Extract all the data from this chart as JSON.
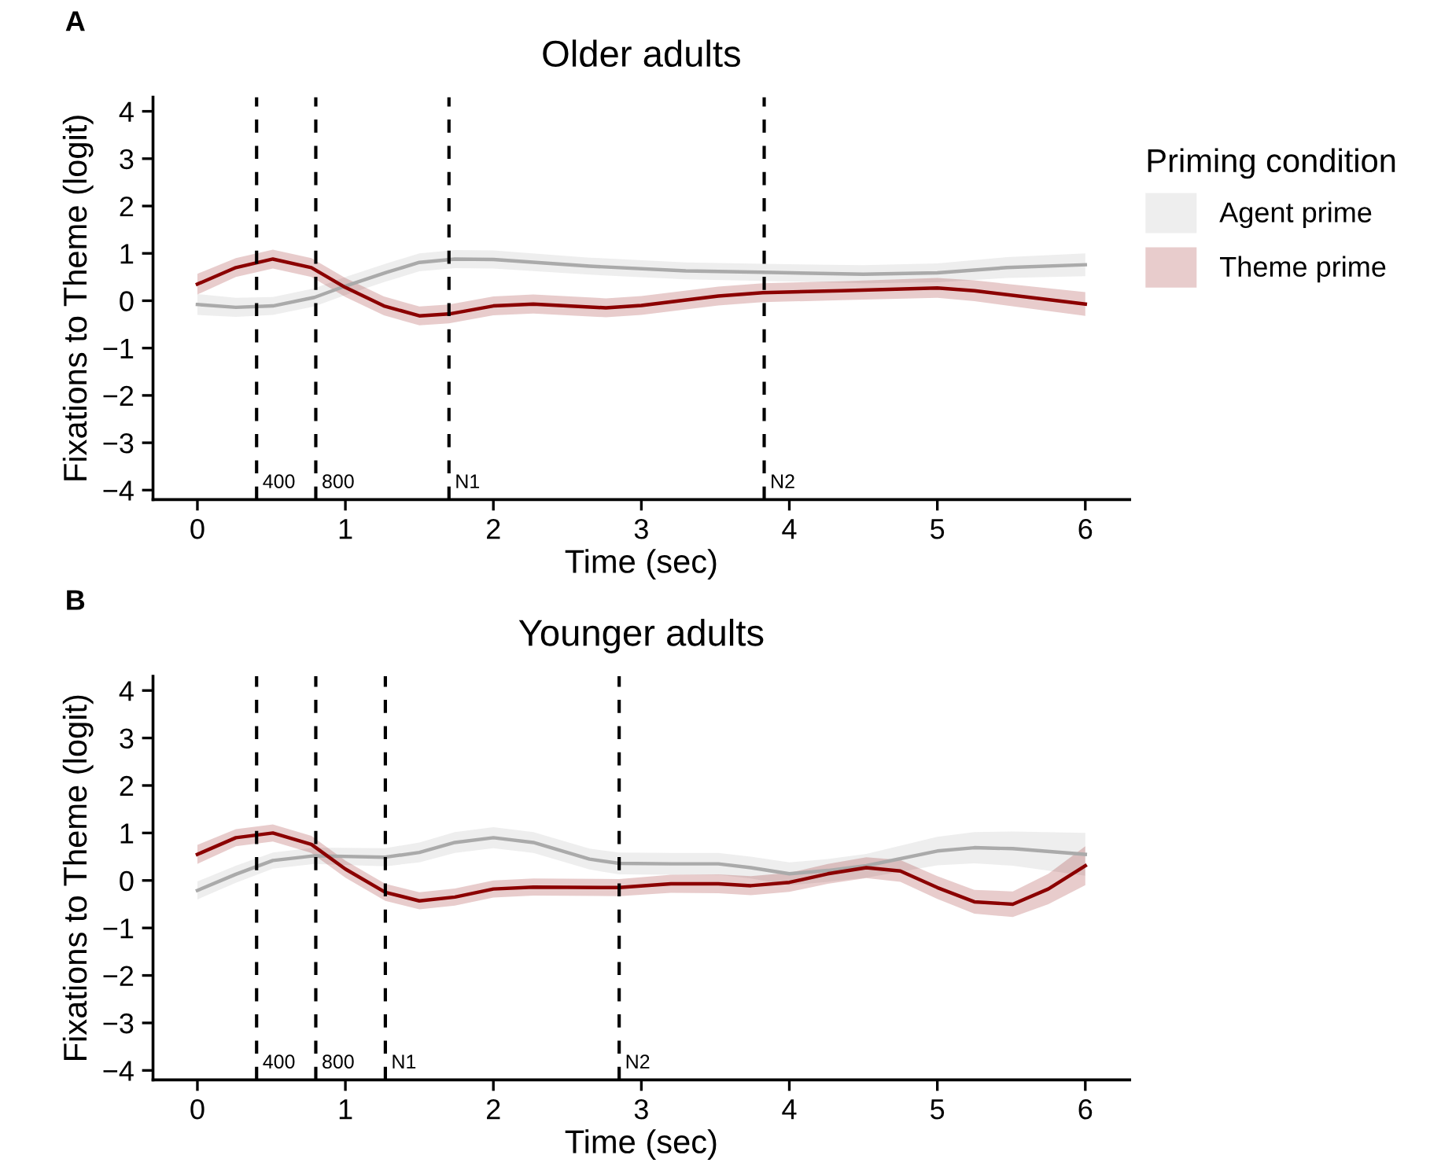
{
  "chart_data": [
    {
      "type": "line",
      "title": "Older adults",
      "xlabel": "Time (sec)",
      "ylabel": "Fixations to Theme (logit)",
      "legend_title": "Priming condition",
      "legend": "right",
      "annotations": [
        "A"
      ],
      "grid": false,
      "line_style": "solid",
      "marker": "none",
      "xlim": [
        -0.3,
        6.3
      ],
      "xticks": [
        0,
        1,
        2,
        3,
        4,
        5,
        6
      ],
      "ylim": [
        -4.2,
        4.3
      ],
      "yticks": [
        -4,
        -3,
        -2,
        -1,
        0,
        1,
        2,
        3,
        4
      ],
      "ref_lines": [
        {
          "axis": "x",
          "value": 0.4,
          "label": "400",
          "color": "#000000",
          "line_style": "dashed"
        },
        {
          "axis": "x",
          "value": 0.8,
          "label": "800",
          "color": "#000000",
          "line_style": "dashed"
        },
        {
          "axis": "x",
          "value": 1.7,
          "label": "N1",
          "color": "#000000",
          "line_style": "dashed"
        },
        {
          "axis": "x",
          "value": 3.83,
          "label": "N2",
          "color": "#000000",
          "line_style": "dashed"
        }
      ],
      "series": [
        {
          "name": "Agent prime",
          "color": "#aaaaaa",
          "x": [
            0,
            0.26,
            0.51,
            0.79,
            1.0,
            1.27,
            1.5,
            1.74,
            2.0,
            2.65,
            3.3,
            3.82,
            4.5,
            5.0,
            5.47,
            6.0
          ],
          "values": [
            -0.08,
            -0.14,
            -0.11,
            0.07,
            0.31,
            0.59,
            0.81,
            0.88,
            0.87,
            0.73,
            0.63,
            0.6,
            0.56,
            0.59,
            0.7,
            0.76
          ],
          "lower": [
            -0.3,
            -0.34,
            -0.3,
            -0.12,
            0.12,
            0.4,
            0.62,
            0.69,
            0.68,
            0.55,
            0.45,
            0.42,
            0.37,
            0.39,
            0.48,
            0.52
          ],
          "upper": [
            0.14,
            0.06,
            0.08,
            0.26,
            0.5,
            0.78,
            1.0,
            1.07,
            1.06,
            0.91,
            0.81,
            0.78,
            0.75,
            0.79,
            0.92,
            1.0
          ]
        },
        {
          "name": "Theme prime",
          "color": "#8b0000",
          "x": [
            0,
            0.26,
            0.51,
            0.77,
            1.0,
            1.26,
            1.5,
            1.7,
            2.0,
            2.27,
            2.76,
            3.0,
            3.52,
            3.82,
            4.35,
            5.0,
            5.25,
            6.0
          ],
          "values": [
            0.35,
            0.7,
            0.88,
            0.7,
            0.28,
            -0.11,
            -0.32,
            -0.28,
            -0.11,
            -0.07,
            -0.15,
            -0.1,
            0.1,
            0.17,
            0.21,
            0.27,
            0.21,
            -0.07
          ],
          "lower": [
            0.13,
            0.5,
            0.68,
            0.5,
            0.08,
            -0.31,
            -0.52,
            -0.48,
            -0.31,
            -0.27,
            -0.35,
            -0.3,
            -0.1,
            -0.03,
            0.01,
            0.06,
            -0.01,
            -0.32
          ],
          "upper": [
            0.57,
            0.9,
            1.08,
            0.9,
            0.48,
            0.09,
            -0.12,
            -0.08,
            0.09,
            0.13,
            0.05,
            0.1,
            0.3,
            0.37,
            0.41,
            0.48,
            0.43,
            0.18
          ]
        }
      ]
    },
    {
      "type": "line",
      "title": "Younger adults",
      "xlabel": "Time (sec)",
      "ylabel": "Fixations to Theme (logit)",
      "annotations": [
        "B"
      ],
      "grid": false,
      "line_style": "solid",
      "marker": "none",
      "xlim": [
        -0.3,
        6.3
      ],
      "xticks": [
        0,
        1,
        2,
        3,
        4,
        5,
        6
      ],
      "ylim": [
        -4.2,
        4.3
      ],
      "yticks": [
        -4,
        -3,
        -2,
        -1,
        0,
        1,
        2,
        3,
        4
      ],
      "ref_lines": [
        {
          "axis": "x",
          "value": 0.4,
          "label": "400",
          "color": "#000000",
          "line_style": "dashed"
        },
        {
          "axis": "x",
          "value": 0.8,
          "label": "800",
          "color": "#000000",
          "line_style": "dashed"
        },
        {
          "axis": "x",
          "value": 1.27,
          "label": "N1",
          "color": "#000000",
          "line_style": "dashed"
        },
        {
          "axis": "x",
          "value": 2.85,
          "label": "N2",
          "color": "#000000",
          "line_style": "dashed"
        }
      ],
      "series": [
        {
          "color": "#aaaaaa",
          "x": [
            0,
            0.26,
            0.51,
            0.79,
            1.27,
            1.5,
            1.74,
            2.0,
            2.27,
            2.65,
            2.85,
            3.2,
            3.52,
            3.74,
            4.0,
            4.26,
            4.52,
            5.0,
            5.25,
            5.51,
            6.0
          ],
          "values": [
            -0.21,
            0.13,
            0.42,
            0.52,
            0.49,
            0.59,
            0.8,
            0.9,
            0.8,
            0.45,
            0.36,
            0.35,
            0.35,
            0.27,
            0.14,
            0.21,
            0.31,
            0.62,
            0.69,
            0.67,
            0.55
          ],
          "lower": [
            -0.4,
            -0.05,
            0.25,
            0.35,
            0.3,
            0.38,
            0.58,
            0.68,
            0.58,
            0.23,
            0.13,
            0.12,
            0.12,
            0.04,
            -0.1,
            -0.03,
            0.06,
            0.32,
            0.36,
            0.31,
            0.1
          ],
          "upper": [
            -0.02,
            0.31,
            0.59,
            0.69,
            0.68,
            0.8,
            1.02,
            1.12,
            1.02,
            0.67,
            0.59,
            0.58,
            0.58,
            0.5,
            0.38,
            0.45,
            0.56,
            0.92,
            1.02,
            1.03,
            1.0
          ]
        },
        {
          "color": "#8b0000",
          "x": [
            0,
            0.26,
            0.51,
            0.77,
            1.0,
            1.27,
            1.5,
            1.74,
            2.0,
            2.27,
            2.85,
            3.2,
            3.52,
            3.74,
            4.0,
            4.26,
            4.52,
            4.75,
            5.0,
            5.25,
            5.51,
            5.75,
            6.0
          ],
          "values": [
            0.55,
            0.9,
            1.0,
            0.76,
            0.24,
            -0.25,
            -0.43,
            -0.35,
            -0.18,
            -0.14,
            -0.15,
            -0.07,
            -0.07,
            -0.11,
            -0.04,
            0.14,
            0.27,
            0.2,
            -0.15,
            -0.45,
            -0.5,
            -0.18,
            0.31
          ],
          "lower": [
            0.35,
            0.72,
            0.82,
            0.58,
            0.06,
            -0.43,
            -0.61,
            -0.53,
            -0.36,
            -0.32,
            -0.33,
            -0.26,
            -0.27,
            -0.31,
            -0.24,
            -0.07,
            0.05,
            -0.03,
            -0.39,
            -0.7,
            -0.77,
            -0.5,
            -0.1
          ],
          "upper": [
            0.75,
            1.08,
            1.18,
            0.94,
            0.42,
            -0.07,
            -0.25,
            -0.17,
            0.0,
            0.04,
            0.03,
            0.12,
            0.13,
            0.09,
            0.16,
            0.35,
            0.49,
            0.43,
            0.09,
            -0.2,
            -0.23,
            0.14,
            0.72
          ]
        }
      ]
    }
  ]
}
